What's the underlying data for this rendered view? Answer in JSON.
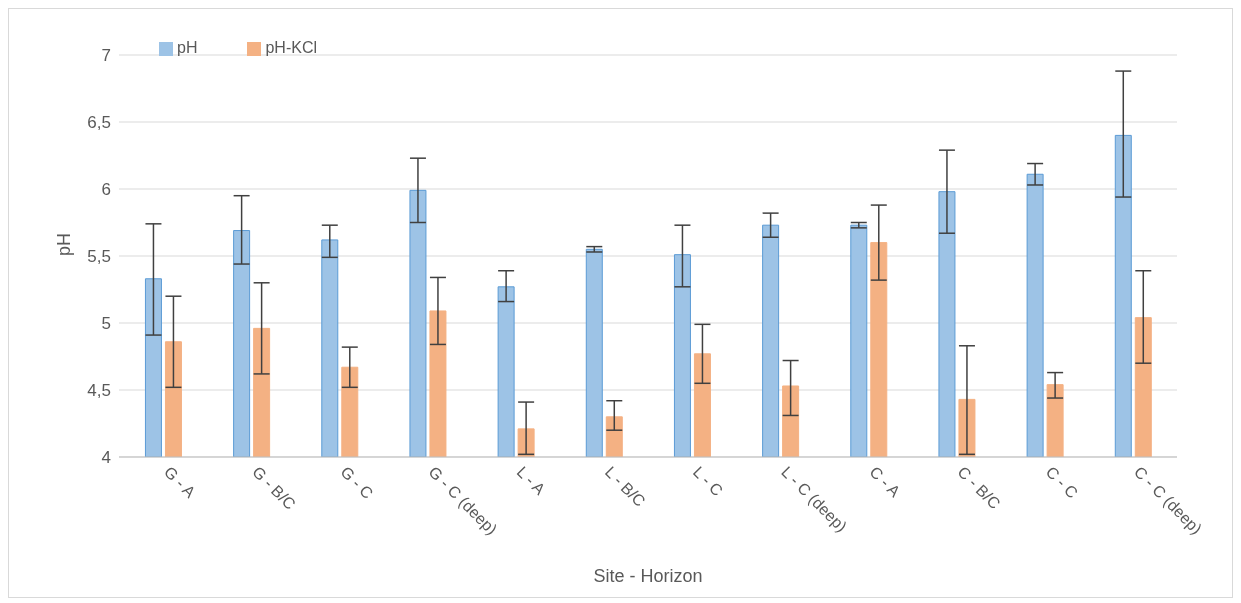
{
  "chart_data": {
    "type": "bar",
    "xlabel": "Site - Horizon",
    "ylabel": "pH",
    "categories": [
      "G - A",
      "G - B/C",
      "G - C",
      "G - C (deep)",
      "L - A",
      "L - B/C",
      "L - C",
      "L - C (deep)",
      "C - A",
      "C - B/C",
      "C - C",
      "C - C (deep)"
    ],
    "series": [
      {
        "name": "pH",
        "color": "#9dc3e6",
        "values": [
          5.33,
          5.69,
          5.62,
          5.99,
          5.27,
          5.55,
          5.51,
          5.73,
          5.73,
          5.98,
          6.11,
          6.4
        ],
        "errors": [
          [
            4.91,
            5.74
          ],
          [
            5.44,
            5.95
          ],
          [
            5.49,
            5.73
          ],
          [
            5.75,
            6.23
          ],
          [
            5.16,
            5.39
          ],
          [
            5.53,
            5.57
          ],
          [
            5.27,
            5.73
          ],
          [
            5.64,
            5.82
          ],
          [
            5.71,
            5.75
          ],
          [
            5.67,
            6.29
          ],
          [
            6.03,
            6.19
          ],
          [
            5.94,
            6.88
          ]
        ]
      },
      {
        "name": "pH-KCl",
        "color": "#f4b183",
        "values": [
          4.86,
          4.96,
          4.67,
          5.09,
          4.21,
          4.3,
          4.77,
          4.53,
          5.6,
          4.43,
          4.54,
          5.04
        ],
        "errors": [
          [
            4.52,
            5.2
          ],
          [
            4.62,
            5.3
          ],
          [
            4.52,
            4.82
          ],
          [
            4.84,
            5.34
          ],
          [
            4.02,
            4.41
          ],
          [
            4.2,
            4.42
          ],
          [
            4.55,
            4.99
          ],
          [
            4.31,
            4.72
          ],
          [
            5.32,
            5.88
          ],
          [
            4.02,
            4.83
          ],
          [
            4.44,
            4.63
          ],
          [
            4.7,
            5.39
          ]
        ]
      }
    ],
    "ylim": [
      4,
      7
    ],
    "yticks": [
      4,
      {
        "value": 4.5,
        "label": "4,5"
      },
      5,
      {
        "value": 5.5,
        "label": "5,5"
      },
      6,
      {
        "value": 6.5,
        "label": "6,5"
      },
      7
    ],
    "grid": "y",
    "legend": "top left"
  }
}
